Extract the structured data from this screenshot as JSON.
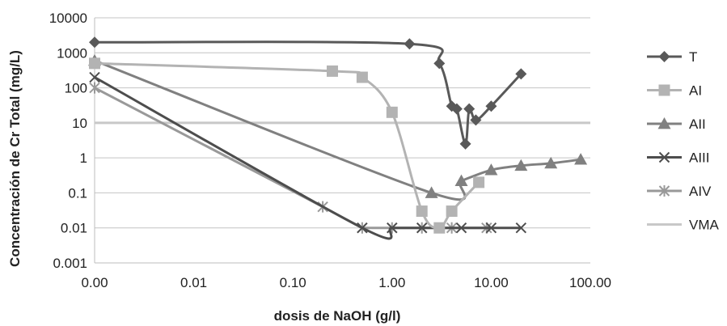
{
  "chart_data": {
    "type": "line",
    "xlabel": "dosis de NaOH (g/l)",
    "ylabel": "Concentración de Cr Total  (mg/L)",
    "x_scale": "log",
    "y_scale": "log",
    "xlim": [
      0.001,
      100
    ],
    "ylim": [
      0.001,
      10000
    ],
    "x_ticks": [
      "0.00",
      "0.01",
      "0.10",
      "1.00",
      "10.00",
      "100.00"
    ],
    "y_ticks": [
      "0.001",
      "0.01",
      "0.1",
      "1",
      "10",
      "100",
      "1000",
      "10000"
    ],
    "grid": "horizontal",
    "legend_position": "right",
    "series": [
      {
        "name": "T",
        "marker": "diamond",
        "color": "#595959",
        "x": [
          0.001,
          1.5,
          3.0,
          4.0,
          4.5,
          5.5,
          6.0,
          7.0,
          10.0,
          20.0
        ],
        "y": [
          2000,
          1800,
          500,
          30,
          25,
          2.5,
          25,
          12,
          30,
          250
        ]
      },
      {
        "name": "AI",
        "marker": "square",
        "color": "#b3b3b3",
        "x": [
          0.001,
          0.25,
          0.5,
          1.0,
          2.0,
          3.0,
          4.0,
          7.5
        ],
        "y": [
          500,
          300,
          200,
          20,
          0.03,
          0.01,
          0.03,
          0.2
        ]
      },
      {
        "name": "AII",
        "marker": "triangle",
        "color": "#808080",
        "x": [
          0.001,
          2.5,
          5.0,
          10.0,
          20.0,
          40.0,
          80.0
        ],
        "y": [
          600,
          0.1,
          0.22,
          0.45,
          0.6,
          0.7,
          0.9
        ]
      },
      {
        "name": "AIII",
        "marker": "x",
        "color": "#4d4d4d",
        "x": [
          0.001,
          0.5,
          1.0,
          2.0,
          3.0,
          5.0,
          10.0,
          20.0
        ],
        "y": [
          200,
          0.01,
          0.01,
          0.01,
          0.01,
          0.01,
          0.01,
          0.01
        ]
      },
      {
        "name": "AIV",
        "marker": "star",
        "color": "#999999",
        "x": [
          0.001,
          0.2,
          0.5,
          1.0,
          2.0,
          4.0,
          9.0
        ],
        "y": [
          100,
          0.04,
          0.01,
          0.01,
          0.01,
          0.01,
          0.01
        ]
      },
      {
        "name": "VMA",
        "marker": "none",
        "color": "#c8c8c8",
        "x": [
          0.001,
          100
        ],
        "y": [
          10,
          10
        ]
      }
    ]
  }
}
